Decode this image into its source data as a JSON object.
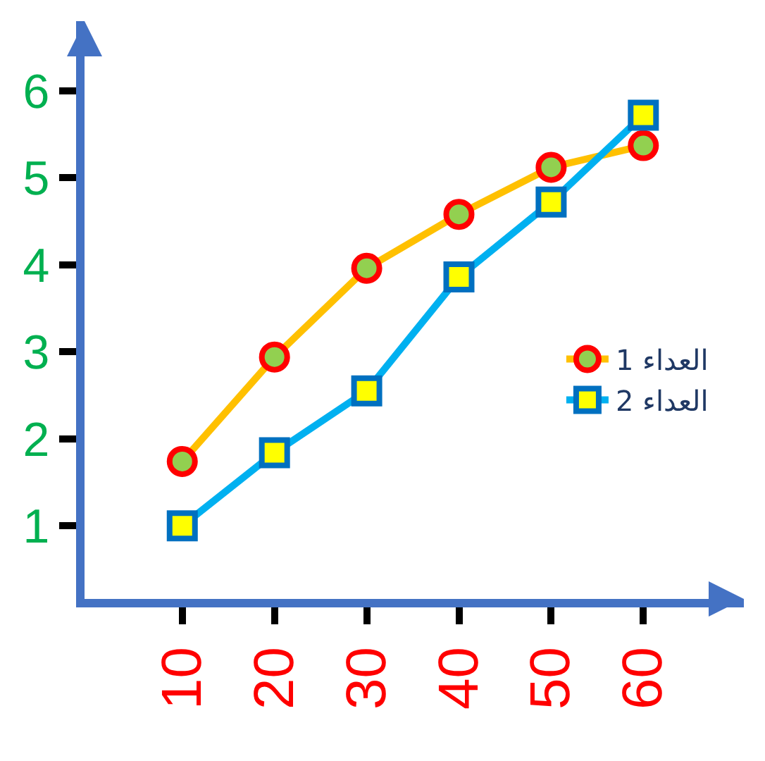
{
  "chart_data": {
    "type": "line",
    "x": [
      10,
      20,
      30,
      40,
      50,
      60
    ],
    "series": [
      {
        "name": "العداء 1",
        "color": "#ffc000",
        "marker": "circle",
        "values": [
          1.74,
          2.94,
          3.96,
          4.58,
          5.12,
          5.37
        ]
      },
      {
        "name": "العداء 2",
        "color": "#00b0f0",
        "marker": "square",
        "values": [
          1.0,
          1.84,
          2.55,
          3.86,
          4.72,
          5.72
        ]
      }
    ],
    "xlim": [
      -0.6,
      70.9
    ],
    "ylim": [
      0.16,
      6.8
    ],
    "xticks": [
      10,
      20,
      30,
      40,
      50,
      60
    ],
    "yticks": [
      1,
      2,
      3,
      4,
      5,
      6
    ],
    "legend": "right",
    "line_style": "solid"
  }
}
